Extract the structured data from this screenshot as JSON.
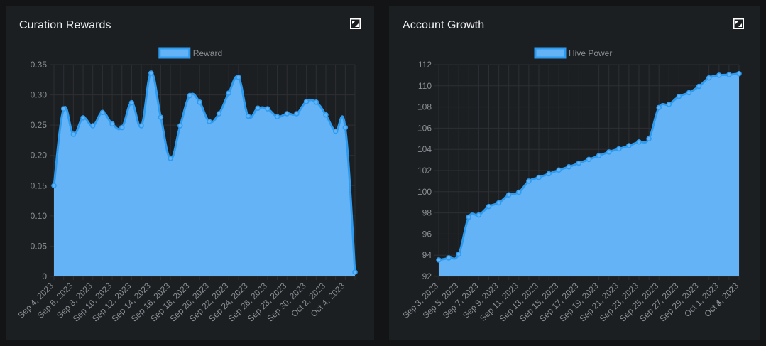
{
  "colors": {
    "background": "#121416",
    "panel": "#1c1f22",
    "fill": "#63b3f6",
    "line": "#2d9bf0",
    "grid": "#2c2f33",
    "text": "#8b8f94"
  },
  "panels": [
    {
      "title": "Curation Rewards",
      "expand_icon": "expand-icon"
    },
    {
      "title": "Account Growth",
      "expand_icon": "expand-icon"
    }
  ],
  "chart_data": [
    {
      "type": "area",
      "title": "Curation Rewards",
      "series": [
        {
          "name": "Reward",
          "values": [
            0.15,
            0.277,
            0.235,
            0.262,
            0.249,
            0.271,
            0.252,
            0.246,
            0.287,
            0.249,
            0.336,
            0.263,
            0.195,
            0.249,
            0.299,
            0.288,
            0.256,
            0.269,
            0.303,
            0.329,
            0.265,
            0.278,
            0.277,
            0.264,
            0.269,
            0.269,
            0.289,
            0.288,
            0.267,
            0.24,
            0.246,
            0.007
          ]
        }
      ],
      "x_tick_labels": [
        "Sep 4, 2023",
        "Sep 6, 2023",
        "Sep 8, 2023",
        "Sep 10, 2023",
        "Sep 12, 2023",
        "Sep 14, 2023",
        "Sep 16, 2023",
        "Sep 18, 2023",
        "Sep 20, 2023",
        "Sep 22, 2023",
        "Sep 24, 2023",
        "Sep 26, 2023",
        "Sep 28, 2023",
        "Sep 30, 2023",
        "Oct 2, 2023",
        "Oct 4, 2023"
      ],
      "y_ticks": [
        "0",
        "0.05",
        "0.10",
        "0.15",
        "0.20",
        "0.25",
        "0.30",
        "0.35"
      ],
      "ylim": [
        0,
        0.35
      ],
      "legend_position": "top-center"
    },
    {
      "type": "area",
      "title": "Account Growth",
      "series": [
        {
          "name": "Hive Power",
          "values": [
            93.55,
            93.75,
            94.1,
            97.6,
            97.8,
            98.6,
            98.95,
            99.7,
            99.95,
            101.0,
            101.35,
            101.7,
            102.05,
            102.35,
            102.7,
            103.05,
            103.4,
            103.75,
            104.05,
            104.35,
            104.7,
            105.0,
            107.95,
            108.25,
            109.0,
            109.35,
            109.95,
            110.75,
            111.0,
            111.05,
            111.15
          ]
        }
      ],
      "x_tick_labels": [
        "Sep 3, 2023",
        "Sep 5, 2023",
        "Sep 7, 2023",
        "Sep 9, 2023",
        "Sep 11, 2023",
        "Sep 13, 2023",
        "Sep 15, 2023",
        "Sep 17, 2023",
        "Sep 19, 2023",
        "Sep 21, 2023",
        "Sep 23, 2023",
        "Sep 25, 2023",
        "Sep 27, 2023",
        "Sep 29, 2023",
        "Oct 1, 2023",
        "Oct 3, 2023",
        "Oct 4, 2023"
      ],
      "y_ticks": [
        "92",
        "94",
        "96",
        "98",
        "100",
        "102",
        "104",
        "106",
        "108",
        "110",
        "112"
      ],
      "ylim": [
        92,
        112
      ],
      "legend_position": "top-center"
    }
  ]
}
